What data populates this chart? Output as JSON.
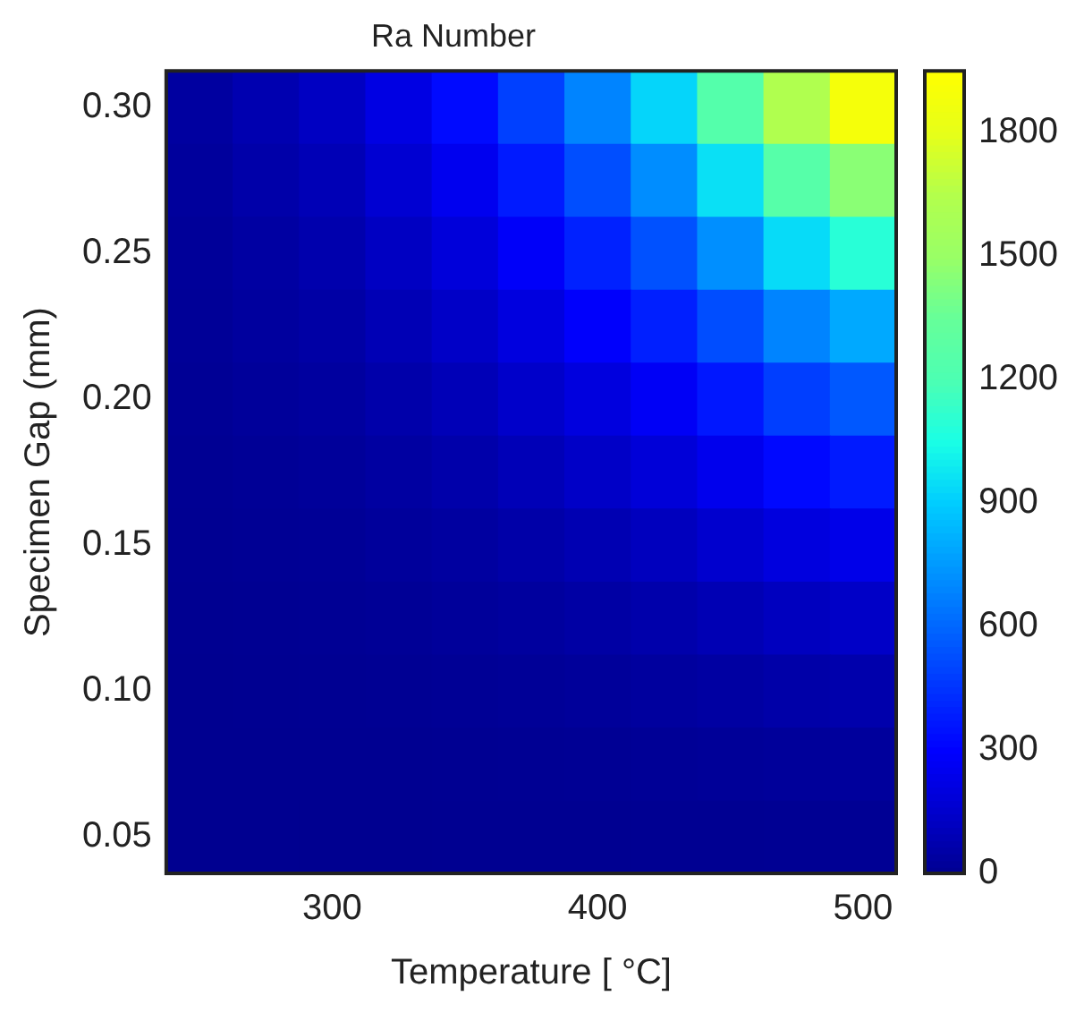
{
  "chart_data": {
    "type": "heatmap",
    "title": "Ra Number",
    "xlabel": "Temperature [ °C]",
    "ylabel": "Specimen Gap (mm)",
    "categories": [
      null,
      null,
      "300",
      null,
      null,
      null,
      "400",
      null,
      null,
      null,
      "500"
    ],
    "y_categories": [
      "0.30",
      null,
      "0.25",
      null,
      "0.20",
      null,
      "0.15",
      null,
      "0.10",
      null,
      "0.05"
    ],
    "cells": [
      [
        40,
        80,
        125,
        217,
        328,
        487,
        688,
        927,
        1245,
        1632,
        1890
      ],
      [
        31,
        62,
        96,
        167,
        253,
        375,
        530,
        714,
        959,
        1257,
        1455
      ],
      [
        23,
        46,
        72,
        126,
        190,
        282,
        398,
        537,
        721,
        945,
        1094
      ],
      [
        17,
        34,
        53,
        92,
        138,
        206,
        290,
        391,
        525,
        689,
        798
      ],
      [
        12,
        24,
        37,
        64,
        97,
        144,
        204,
        274,
        369,
        483,
        559
      ],
      [
        8,
        16,
        25,
        43,
        65,
        97,
        137,
        184,
        248,
        325,
        376
      ],
      [
        5,
        10,
        16,
        27,
        41,
        61,
        86,
        116,
        156,
        204,
        236
      ],
      [
        3,
        6,
        9,
        16,
        24,
        35,
        50,
        67,
        90,
        118,
        137
      ],
      [
        1,
        3,
        5,
        8,
        12,
        18,
        25,
        34,
        46,
        60,
        70
      ],
      [
        1,
        1,
        2,
        3,
        5,
        8,
        11,
        14,
        19,
        25,
        29
      ],
      [
        0,
        0,
        1,
        1,
        2,
        2,
        3,
        4,
        6,
        8,
        9
      ]
    ],
    "clim": [
      0,
      1950
    ],
    "cticks": [
      0,
      300,
      600,
      900,
      1200,
      1500,
      1800
    ]
  }
}
